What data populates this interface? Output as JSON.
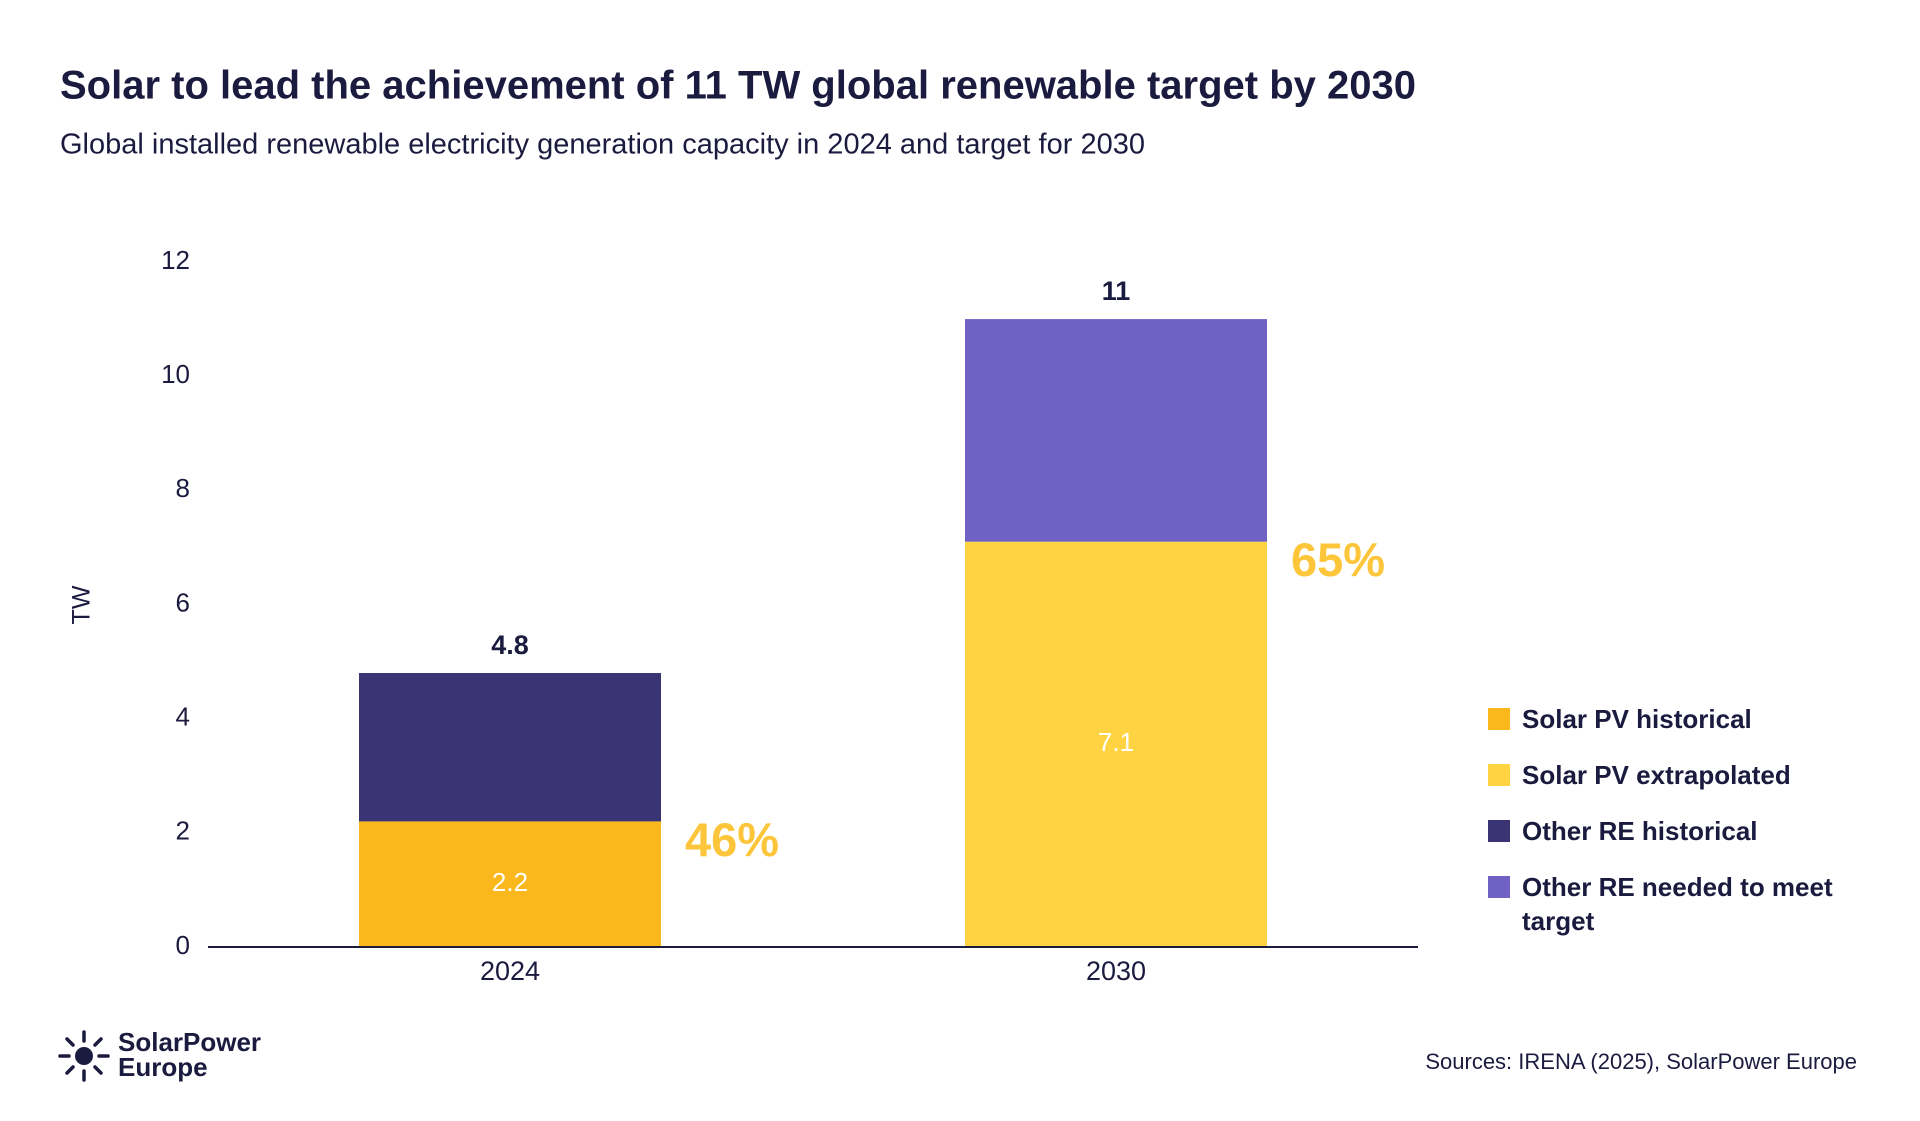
{
  "chart_data": {
    "type": "stacked_bar",
    "title": "Solar to lead the achievement of 11 TW global renewable target by 2030",
    "subtitle": "Global installed renewable electricity generation capacity in 2024 and target for 2030",
    "y_label": "TW",
    "categories": [
      "2024",
      "2030"
    ],
    "series": [
      {
        "name": "Solar PV historical",
        "color": "#fbb81c",
        "values": [
          2.2,
          null
        ],
        "show_value_labels": true
      },
      {
        "name": "Solar PV extrapolated",
        "color": "#ffd341",
        "values": [
          null,
          7.1
        ],
        "show_value_labels": true
      },
      {
        "name": "Other RE historical",
        "color": "#3b3474",
        "values": [
          2.6,
          null
        ]
      },
      {
        "name": "Other RE needed to meet target",
        "color": "#7062c4",
        "values": [
          null,
          3.9
        ]
      }
    ],
    "totals": [
      4.8,
      11
    ],
    "annotations": [
      "46%",
      "65%"
    ],
    "annotation_color": "#fcc53a",
    "ylim": [
      0,
      12
    ],
    "yticks": [
      0,
      2,
      4,
      6,
      8,
      10,
      12
    ],
    "legend": "right",
    "source": "Sources: IRENA (2025), SolarPower Europe",
    "logo": [
      "SolarPower",
      "Europe"
    ]
  }
}
